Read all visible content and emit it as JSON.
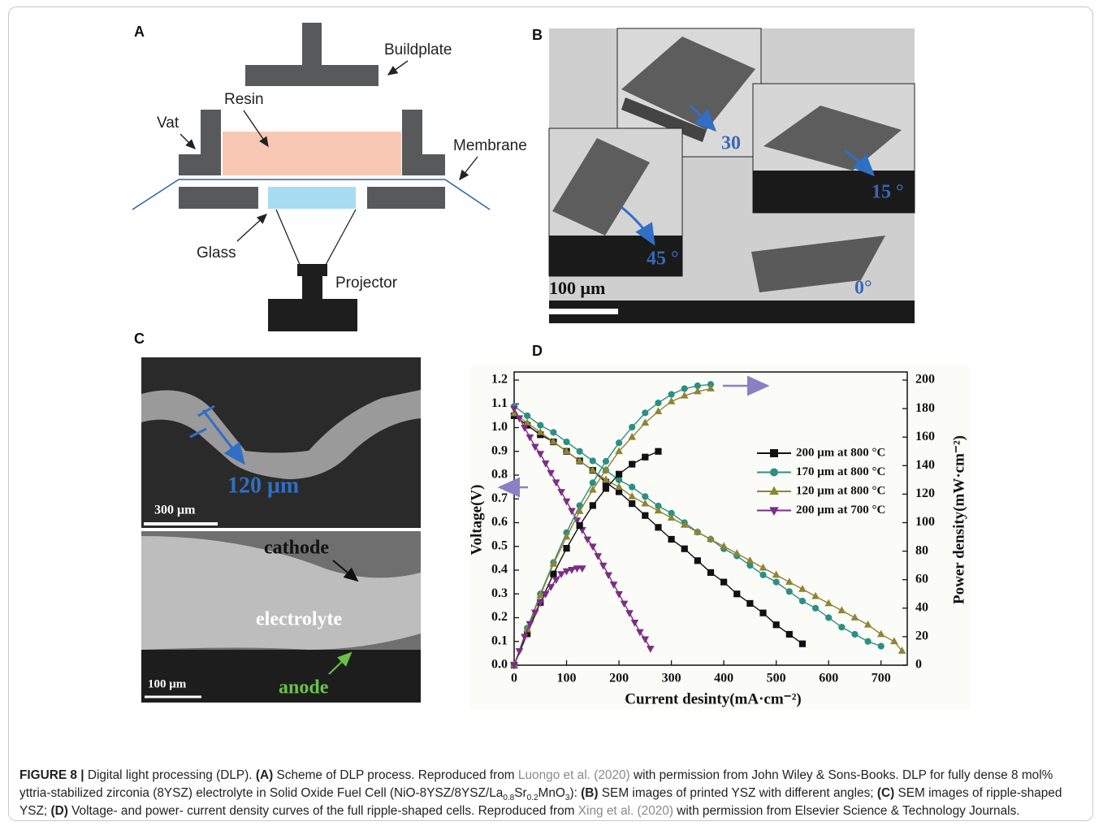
{
  "panel_a": {
    "letter": "A",
    "buildplate": "Buildplate",
    "resin": "Resin",
    "vat": "Vat",
    "membrane": "Membrane",
    "glass": "Glass",
    "projector": "Projector"
  },
  "panel_b": {
    "letter": "B",
    "angles": [
      "30",
      "15 °",
      "45 °",
      "0°"
    ],
    "scale_bar": "100 μm"
  },
  "panel_c": {
    "letter": "C",
    "thickness": "120 μm",
    "scale_bar_top": "300 μm",
    "cathode": "cathode",
    "electrolyte": "electrolyte",
    "anode": "anode",
    "scale_bar_bottom": "100 μm"
  },
  "panel_d": {
    "letter": "D"
  },
  "chart_data": {
    "type": "line",
    "x_label": "Current desinty(mA·cm⁻²)",
    "y_label": "Voltage(V)",
    "y2_label": "Power density(mW·cm⁻²)",
    "xlim": [
      0,
      750
    ],
    "xticks": [
      0,
      100,
      200,
      300,
      400,
      500,
      600,
      700
    ],
    "ylim": [
      0,
      1.2
    ],
    "yticks": [
      {
        "value": 0,
        "label": "0.0"
      },
      0.1,
      0.2,
      0.3,
      0.4,
      0.5,
      0.6,
      0.7,
      0.8,
      0.9,
      {
        "value": 1,
        "label": "1.0"
      },
      1.1,
      1.2
    ],
    "y2lim": [
      0,
      200
    ],
    "y2ticks": [
      0,
      20,
      40,
      60,
      80,
      100,
      120,
      140,
      160,
      180,
      200
    ],
    "legend": "center right",
    "series": [
      {
        "name": "200 μm at  800 °C",
        "color": "#111111",
        "marker": "square",
        "x": [
          0,
          25,
          50,
          75,
          100,
          125,
          150,
          175,
          200,
          225,
          250,
          275,
          300,
          325,
          350,
          375,
          400,
          425,
          450,
          475,
          500,
          525,
          550
        ],
        "values": [
          1.05,
          1.01,
          0.97,
          0.94,
          0.9,
          0.86,
          0.82,
          0.77,
          0.73,
          0.68,
          0.63,
          0.58,
          0.53,
          0.49,
          0.44,
          0.39,
          0.35,
          0.3,
          0.26,
          0.22,
          0.17,
          0.13,
          0.09
        ]
      },
      {
        "name": "170 μm at  800 °C",
        "color": "#2b8f84",
        "marker": "circle",
        "x": [
          0,
          25,
          50,
          75,
          100,
          125,
          150,
          175,
          200,
          225,
          250,
          275,
          300,
          325,
          350,
          375,
          400,
          425,
          450,
          475,
          500,
          525,
          550,
          575,
          600,
          625,
          650,
          675,
          700
        ],
        "values": [
          1.09,
          1.05,
          1.01,
          0.98,
          0.94,
          0.9,
          0.86,
          0.82,
          0.78,
          0.75,
          0.71,
          0.67,
          0.64,
          0.6,
          0.56,
          0.53,
          0.49,
          0.46,
          0.42,
          0.38,
          0.35,
          0.31,
          0.27,
          0.24,
          0.2,
          0.16,
          0.13,
          0.1,
          0.08
        ]
      },
      {
        "name": "120 μm at  800 °C",
        "color": "#8f8434",
        "marker": "triangle-up",
        "x": [
          0,
          25,
          50,
          75,
          100,
          125,
          150,
          175,
          200,
          225,
          250,
          275,
          300,
          325,
          350,
          375,
          400,
          425,
          450,
          475,
          500,
          525,
          550,
          575,
          600,
          625,
          650,
          675,
          700,
          725,
          740
        ],
        "values": [
          1.06,
          1.02,
          0.98,
          0.94,
          0.9,
          0.86,
          0.82,
          0.78,
          0.75,
          0.71,
          0.68,
          0.65,
          0.62,
          0.59,
          0.56,
          0.53,
          0.5,
          0.47,
          0.44,
          0.41,
          0.38,
          0.35,
          0.32,
          0.29,
          0.26,
          0.23,
          0.2,
          0.17,
          0.13,
          0.1,
          0.06
        ]
      },
      {
        "name": "200 μm at  700 °C",
        "color": "#7d2d84",
        "marker": "triangle-down",
        "x": [
          0,
          10,
          20,
          30,
          40,
          50,
          60,
          70,
          80,
          90,
          100,
          110,
          120,
          130,
          140,
          150,
          160,
          170,
          180,
          190,
          200,
          210,
          220,
          230,
          240,
          250,
          260
        ],
        "values": [
          1.08,
          1.04,
          1.0,
          0.96,
          0.92,
          0.89,
          0.85,
          0.81,
          0.77,
          0.73,
          0.69,
          0.65,
          0.61,
          0.57,
          0.53,
          0.5,
          0.46,
          0.42,
          0.38,
          0.34,
          0.3,
          0.26,
          0.22,
          0.18,
          0.14,
          0.11,
          0.07
        ]
      },
      {
        "axis": "y2",
        "color": "#111111",
        "marker": "square",
        "x": [
          0,
          25,
          50,
          75,
          100,
          125,
          150,
          175,
          200,
          225,
          250,
          275
        ],
        "values": [
          0,
          22,
          44,
          64,
          82,
          98,
          112,
          124,
          134,
          141,
          146,
          150
        ]
      },
      {
        "axis": "y2",
        "color": "#2b8f84",
        "marker": "circle",
        "x": [
          0,
          25,
          50,
          75,
          100,
          125,
          150,
          175,
          200,
          225,
          250,
          275,
          300,
          325,
          350,
          375
        ],
        "values": [
          0,
          26,
          50,
          72,
          93,
          112,
          128,
          143,
          156,
          167,
          177,
          184,
          190,
          194,
          196,
          197
        ]
      },
      {
        "axis": "y2",
        "color": "#8f8434",
        "marker": "triangle-up",
        "x": [
          0,
          25,
          50,
          75,
          100,
          125,
          150,
          175,
          200,
          225,
          250,
          275,
          300,
          325,
          350,
          375
        ],
        "values": [
          0,
          25,
          49,
          71,
          90,
          108,
          123,
          137,
          150,
          160,
          170,
          178,
          185,
          189,
          192,
          194
        ]
      },
      {
        "axis": "y2",
        "color": "#7d2d84",
        "marker": "triangle-down",
        "x": [
          0,
          10,
          20,
          30,
          40,
          50,
          60,
          70,
          80,
          90,
          100,
          110,
          120,
          130
        ],
        "values": [
          0,
          10,
          20,
          29,
          37,
          44,
          50,
          55,
          60,
          64,
          66,
          67,
          68,
          68
        ]
      }
    ]
  },
  "caption": [
    "FIGURE 8 |",
    " Digital light processing (DLP). ",
    "(A)",
    " Scheme of DLP process. Reproduced from ",
    "Luongo et al. (2020)",
    " with permission from John Wiley & Sons-Books. DLP for fully dense 8 mol% yttria-stabilized zirconia (8YSZ) electrolyte in Solid Oxide Fuel Cell (NiO-8YSZ/8YSZ/La",
    "0.8",
    "Sr",
    "0.2",
    "MnO",
    "3",
    "): ",
    "(B)",
    " SEM images of printed YSZ with different angles; ",
    "(C)",
    " SEM images of ripple-shaped YSZ; ",
    "(D)",
    " Voltage- and power- current density curves of the full ripple-shaped cells. Reproduced from ",
    "Xing et al. (2020)",
    " with permission from Elsevier Science & Technology Journals."
  ]
}
